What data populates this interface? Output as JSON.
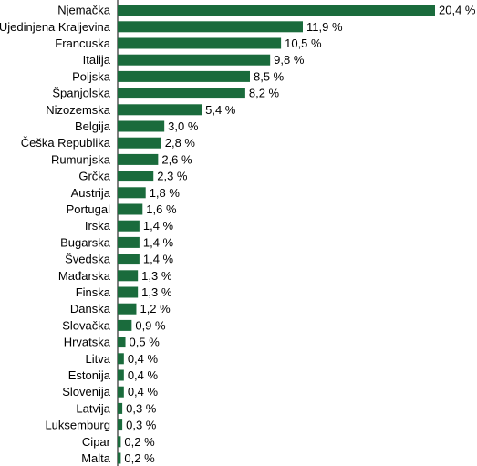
{
  "colors": {
    "bar": "#1a6b3c",
    "text": "#000000",
    "axis": "#000000"
  },
  "chart_data": {
    "type": "bar",
    "orientation": "horizontal",
    "categories": [
      "Njemačka",
      "Ujedinjena Kraljevina",
      "Francuska",
      "Italija",
      "Poljska",
      "Španjolska",
      "Nizozemska",
      "Belgija",
      "Češka Republika",
      "Rumunjska",
      "Grčka",
      "Austrija",
      "Portugal",
      "Irska",
      "Bugarska",
      "Švedska",
      "Mađarska",
      "Finska",
      "Danska",
      "Slovačka",
      "Hrvatska",
      "Litva",
      "Estonija",
      "Slovenija",
      "Latvija",
      "Luksemburg",
      "Cipar",
      "Malta"
    ],
    "values": [
      20.4,
      11.9,
      10.5,
      9.8,
      8.5,
      8.2,
      5.4,
      3.0,
      2.8,
      2.6,
      2.3,
      1.8,
      1.6,
      1.4,
      1.4,
      1.4,
      1.3,
      1.3,
      1.2,
      0.9,
      0.5,
      0.4,
      0.4,
      0.4,
      0.3,
      0.3,
      0.2,
      0.2
    ],
    "value_labels": [
      "20,4 %",
      "11,9 %",
      "10,5 %",
      "9,8 %",
      "8,5 %",
      "8,2 %",
      "5,4 %",
      "3,0 %",
      "2,8 %",
      "2,6 %",
      "2,3 %",
      "1,8 %",
      "1,6 %",
      "1,4 %",
      "1,4 %",
      "1,4 %",
      "1,3 %",
      "1,3 %",
      "1,2 %",
      "0,9 %",
      "0,5 %",
      "0,4 %",
      "0,4 %",
      "0,4 %",
      "0,3 %",
      "0,3 %",
      "0,2 %",
      "0,2 %"
    ],
    "title": "",
    "xlabel": "",
    "ylabel": "",
    "xlim": [
      0,
      20.4
    ],
    "grid": false,
    "legend": "none"
  }
}
